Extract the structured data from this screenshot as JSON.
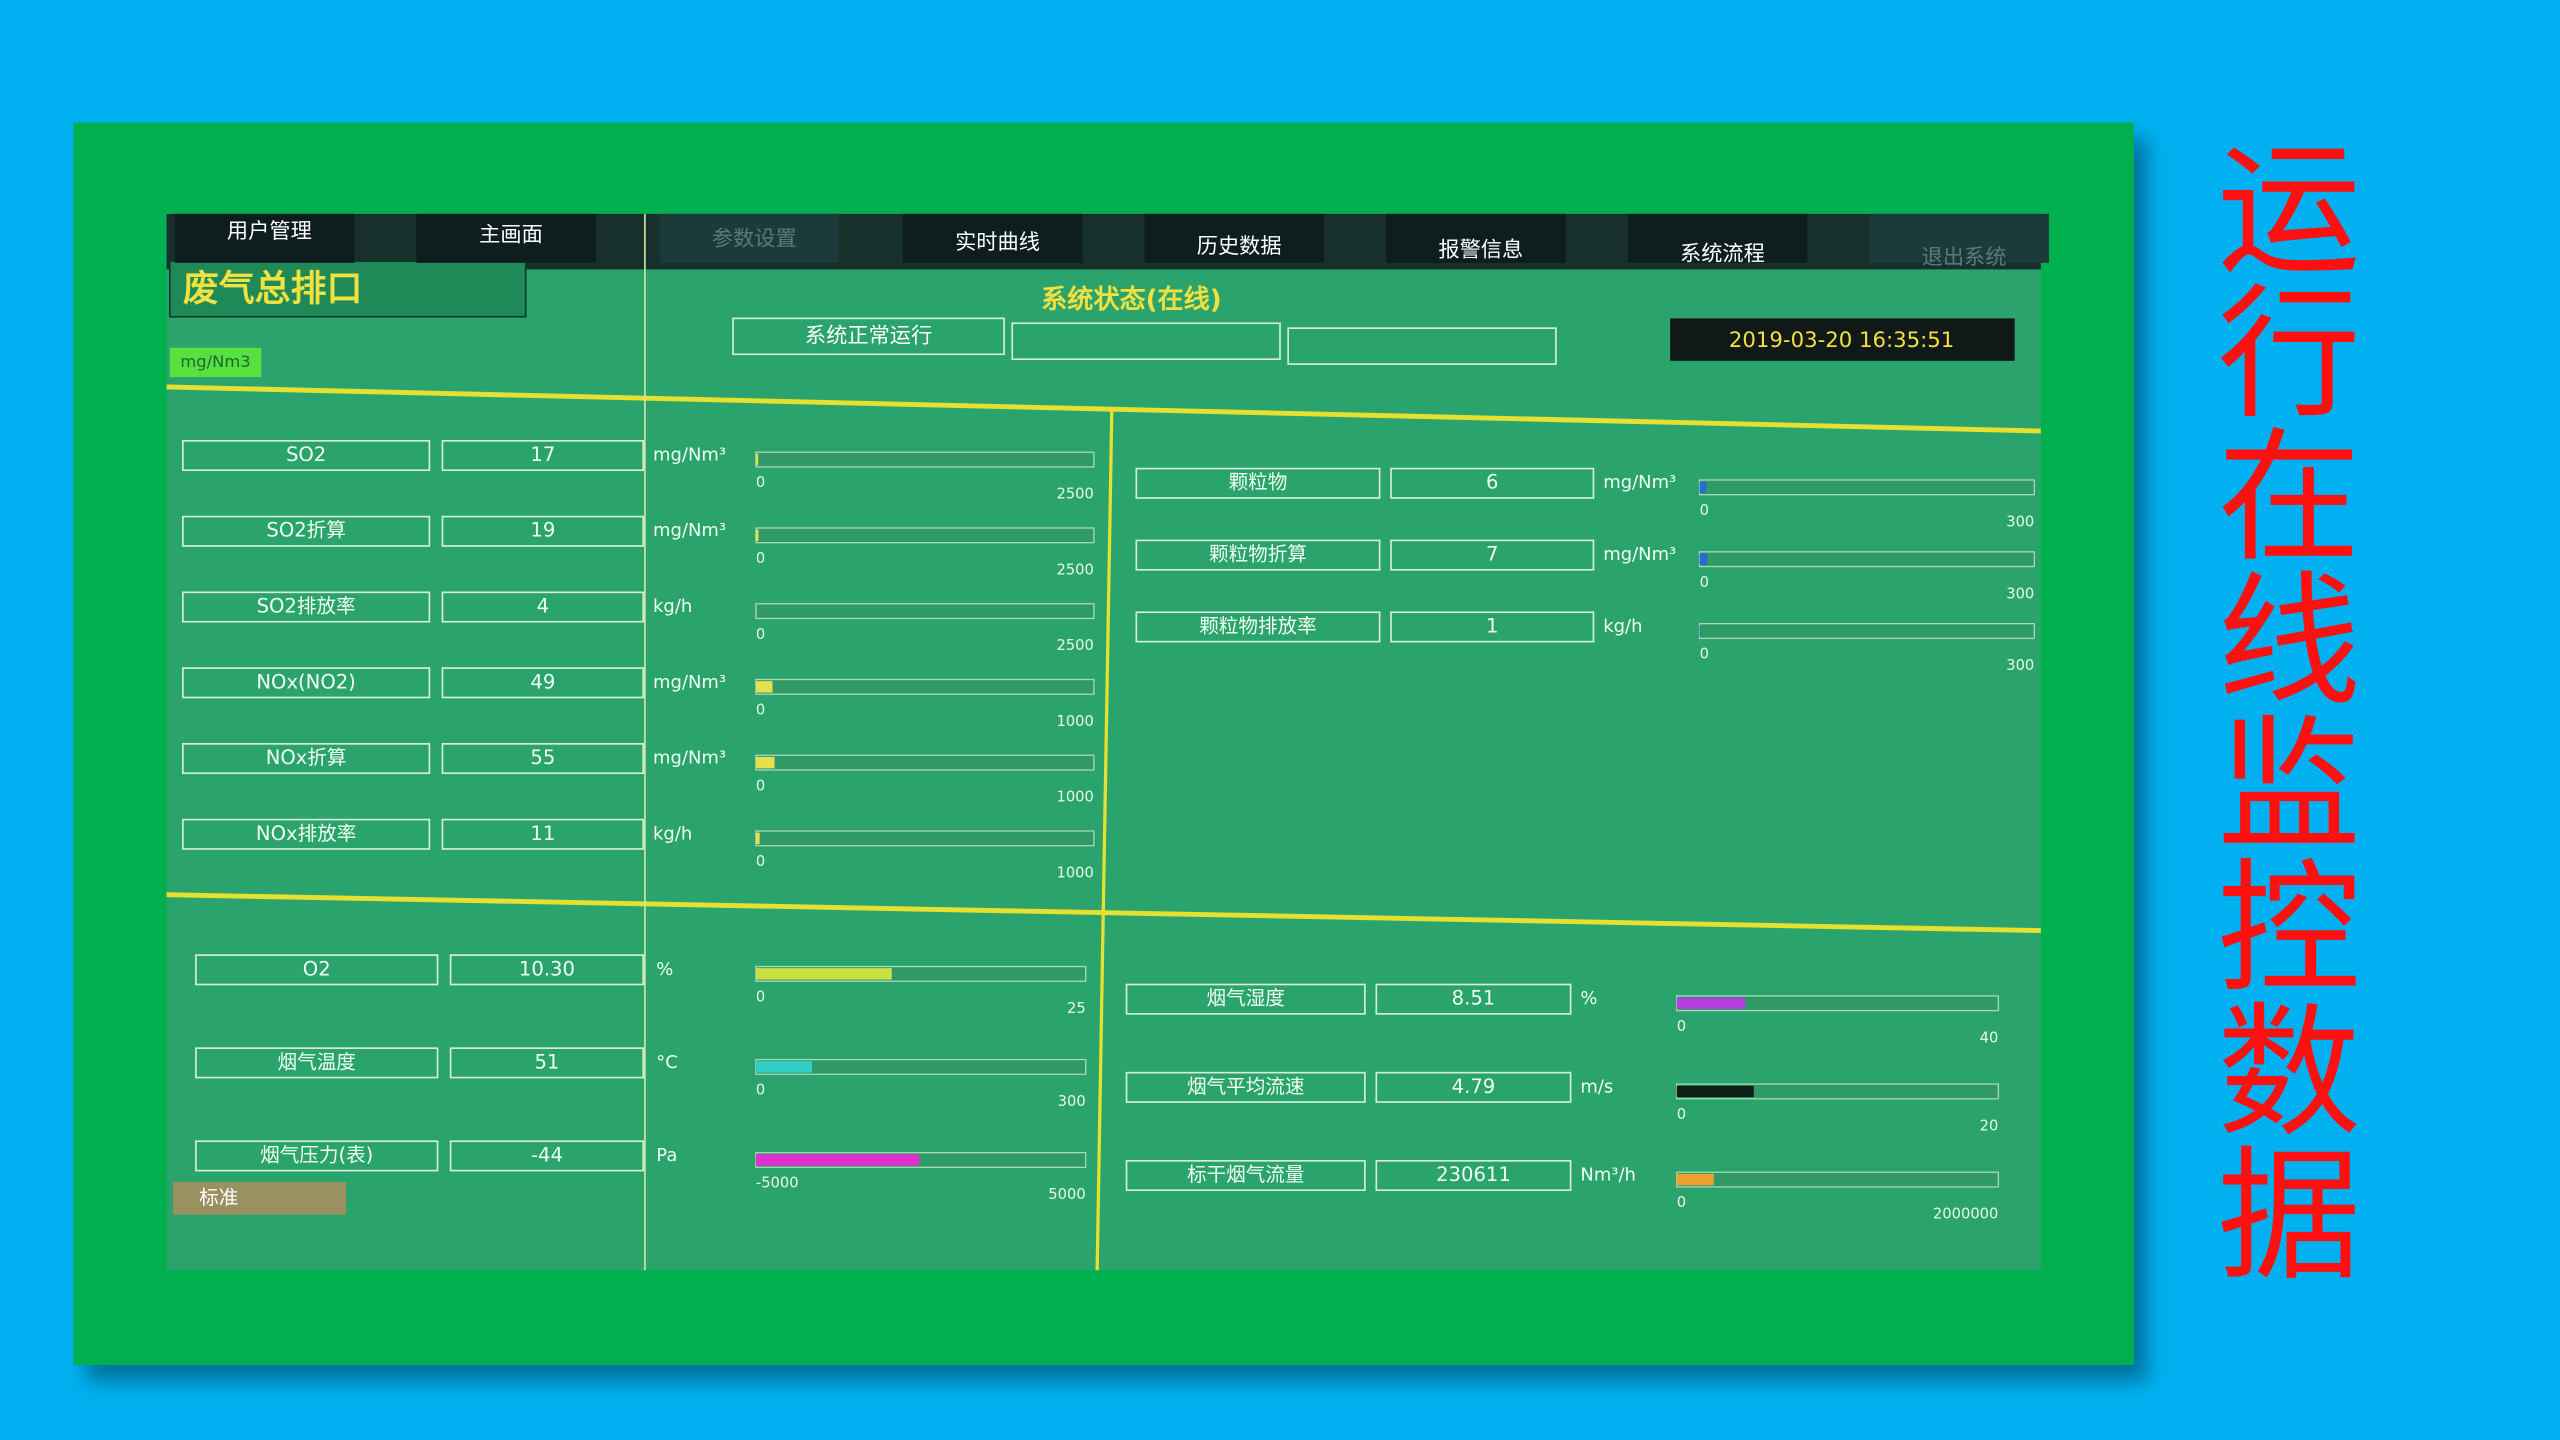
{
  "title": "运行在线监控数据",
  "screen": {
    "tabs": [
      "用户管理",
      "主画面",
      "参数设置",
      "实时曲线",
      "历史数据",
      "报警信息",
      "系统流程",
      "退出系统"
    ],
    "station": "废气总排口",
    "unit_button": "mg/Nm3",
    "status_title": "系统状态(在线)",
    "status": [
      "系统正常运行"
    ],
    "datetime": "2019-03-20 16:35:51",
    "footer_button": "标准",
    "panels": [
      {
        "items": [
          {
            "name": "SO2",
            "value": "17",
            "unit": "mg/Nm³",
            "min": "0",
            "max": "2500",
            "color": "#e6e04a"
          },
          {
            "name": "SO2折算",
            "value": "19",
            "unit": "mg/Nm³",
            "min": "0",
            "max": "2500",
            "color": "#e6e04a"
          },
          {
            "name": "SO2排放率",
            "value": "4",
            "unit": "kg/h",
            "min": "0",
            "max": "2500",
            "color": "#e6e04a"
          },
          {
            "name": "NOx(NO2)",
            "value": "49",
            "unit": "mg/Nm³",
            "min": "0",
            "max": "1000",
            "color": "#e6e04a"
          },
          {
            "name": "NOx折算",
            "value": "55",
            "unit": "mg/Nm³",
            "min": "0",
            "max": "1000",
            "color": "#e6e04a"
          },
          {
            "name": "NOx排放率",
            "value": "11",
            "unit": "kg/h",
            "min": "0",
            "max": "1000",
            "color": "#e6e04a"
          }
        ]
      },
      {
        "items": [
          {
            "name": "颗粒物",
            "value": "6",
            "unit": "mg/Nm³",
            "min": "0",
            "max": "300",
            "color": "#2a6ad8"
          },
          {
            "name": "颗粒物折算",
            "value": "7",
            "unit": "mg/Nm³",
            "min": "0",
            "max": "300",
            "color": "#2a6ad8"
          },
          {
            "name": "颗粒物排放率",
            "value": "1",
            "unit": "kg/h",
            "min": "0",
            "max": "300",
            "color": "#2a6ad8"
          }
        ]
      },
      {
        "items": [
          {
            "name": "O2",
            "value": "10.30",
            "unit": "%",
            "min": "0",
            "max": "25",
            "color": "#c8e040"
          },
          {
            "name": "烟气温度",
            "value": "51",
            "unit": "°C",
            "min": "0",
            "max": "300",
            "color": "#30d0c8"
          },
          {
            "name": "烟气压力(表)",
            "value": "-44",
            "unit": "Pa",
            "min": "-5000",
            "max": "5000",
            "color": "#e030d0"
          }
        ]
      },
      {
        "items": [
          {
            "name": "烟气湿度",
            "value": "8.51",
            "unit": "%",
            "min": "0",
            "max": "40",
            "color": "#b040e0"
          },
          {
            "name": "烟气平均流速",
            "value": "4.79",
            "unit": "m/s",
            "min": "0",
            "max": "20",
            "color": "#102018"
          },
          {
            "name": "标干烟气流量",
            "value": "230611",
            "unit": "Nm³/h",
            "min": "0",
            "max": "2000000",
            "color": "#f0a030"
          }
        ]
      }
    ]
  }
}
